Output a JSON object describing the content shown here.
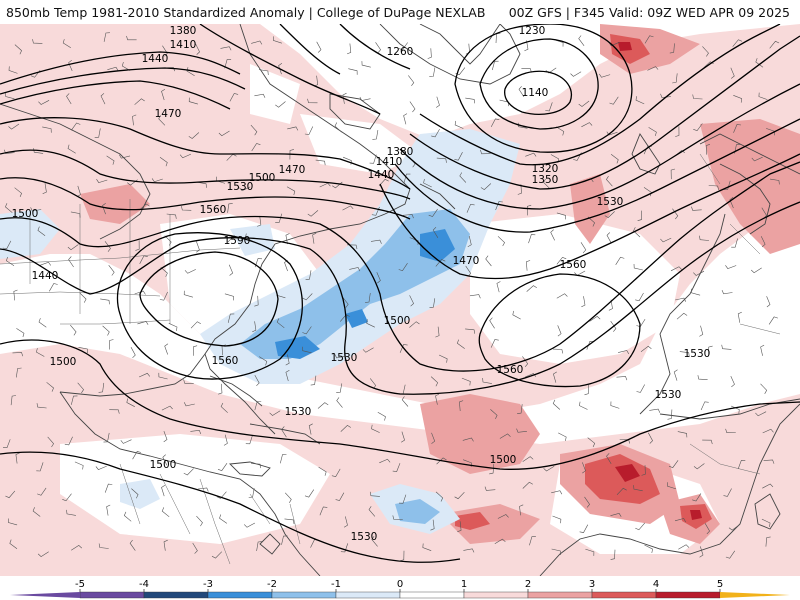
{
  "header": {
    "title_left": "850mb Temp 1981-2010 Standardized Anomaly | College of DuPage NEXLAB",
    "title_right": "00Z GFS | F345 Valid: 09Z WED APR 09 2025"
  },
  "colors": {
    "ocean": "#ffffff",
    "coast": "#444444",
    "contour": "#000000",
    "neg5": "#6a4aa0",
    "neg4": "#22487a",
    "neg3": "#3a8fd9",
    "neg2": "#8ec0ea",
    "neg1": "#dbe9f7",
    "pos1": "#f8dada",
    "pos2": "#eba2a2",
    "pos3": "#dc5a5a",
    "pos4": "#b81c2c",
    "pos5": "#f2b21a"
  },
  "colorbar": {
    "ticks": [
      "-5",
      "-4",
      "-3",
      "-2",
      "-1",
      "0",
      "1",
      "2",
      "3",
      "4",
      "5"
    ]
  },
  "contour_labels": [
    {
      "text": "1380"
    },
    {
      "text": "1410"
    },
    {
      "text": "1440"
    },
    {
      "text": "1470"
    },
    {
      "text": "1260"
    },
    {
      "text": "1230"
    },
    {
      "text": "1140"
    },
    {
      "text": "1380"
    },
    {
      "text": "1410"
    },
    {
      "text": "1440"
    },
    {
      "text": "1470"
    },
    {
      "text": "1500"
    },
    {
      "text": "1530"
    },
    {
      "text": "1560"
    },
    {
      "text": "1590"
    },
    {
      "text": "1500"
    },
    {
      "text": "1440"
    },
    {
      "text": "1320"
    },
    {
      "text": "1350"
    },
    {
      "text": "1470"
    },
    {
      "text": "1500"
    },
    {
      "text": "1530"
    },
    {
      "text": "1560"
    },
    {
      "text": "1530"
    },
    {
      "text": "1560"
    },
    {
      "text": "1500"
    },
    {
      "text": "1560"
    },
    {
      "text": "1530"
    },
    {
      "text": "1530"
    },
    {
      "text": "1530"
    },
    {
      "text": "1500"
    },
    {
      "text": "1500"
    },
    {
      "text": "1530"
    }
  ]
}
